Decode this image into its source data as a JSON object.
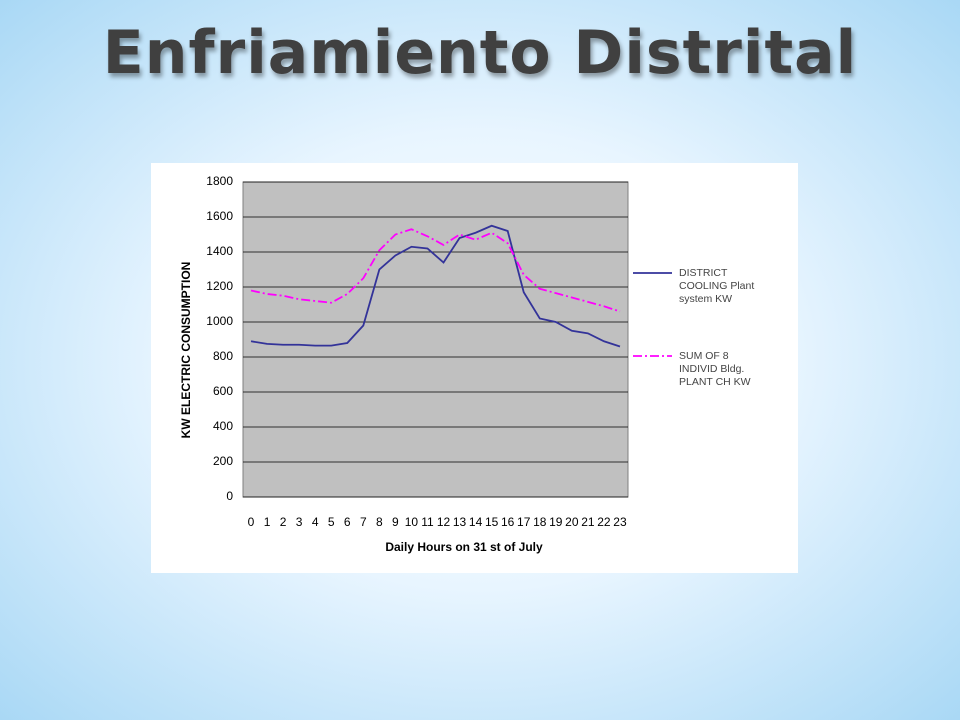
{
  "title": "Enfriamiento Distrital",
  "chart_data": {
    "type": "line",
    "ylabel": "KW ELECTRIC CONSUMPTION",
    "xlabel": "Daily Hours on  31 st of July",
    "categories": [
      "0",
      "1",
      "2",
      "3",
      "4",
      "5",
      "6",
      "7",
      "8",
      "9",
      "10",
      "11",
      "12",
      "13",
      "14",
      "15",
      "16",
      "17",
      "18",
      "19",
      "20",
      "21",
      "22",
      "23"
    ],
    "series": [
      {
        "name": "DISTRICT COOLING Plant system KW",
        "color": "#333399",
        "dash": "solid",
        "values": [
          890,
          875,
          870,
          870,
          865,
          865,
          880,
          980,
          1300,
          1380,
          1430,
          1420,
          1340,
          1480,
          1510,
          1550,
          1520,
          1170,
          1020,
          1000,
          950,
          935,
          890,
          860
        ]
      },
      {
        "name": "SUM OF 8 INDIVID Bldg. PLANT CH KW",
        "color": "#ff00ff",
        "dash": "dashdot",
        "values": [
          1180,
          1160,
          1150,
          1130,
          1120,
          1110,
          1160,
          1250,
          1410,
          1500,
          1530,
          1490,
          1440,
          1500,
          1470,
          1510,
          1450,
          1270,
          1190,
          1165,
          1140,
          1115,
          1090,
          1060
        ]
      }
    ],
    "ylim": [
      0,
      1800
    ],
    "yticks": [
      0,
      200,
      400,
      600,
      800,
      1000,
      1200,
      1400,
      1600,
      1800
    ],
    "grid": true,
    "legend": "right"
  }
}
